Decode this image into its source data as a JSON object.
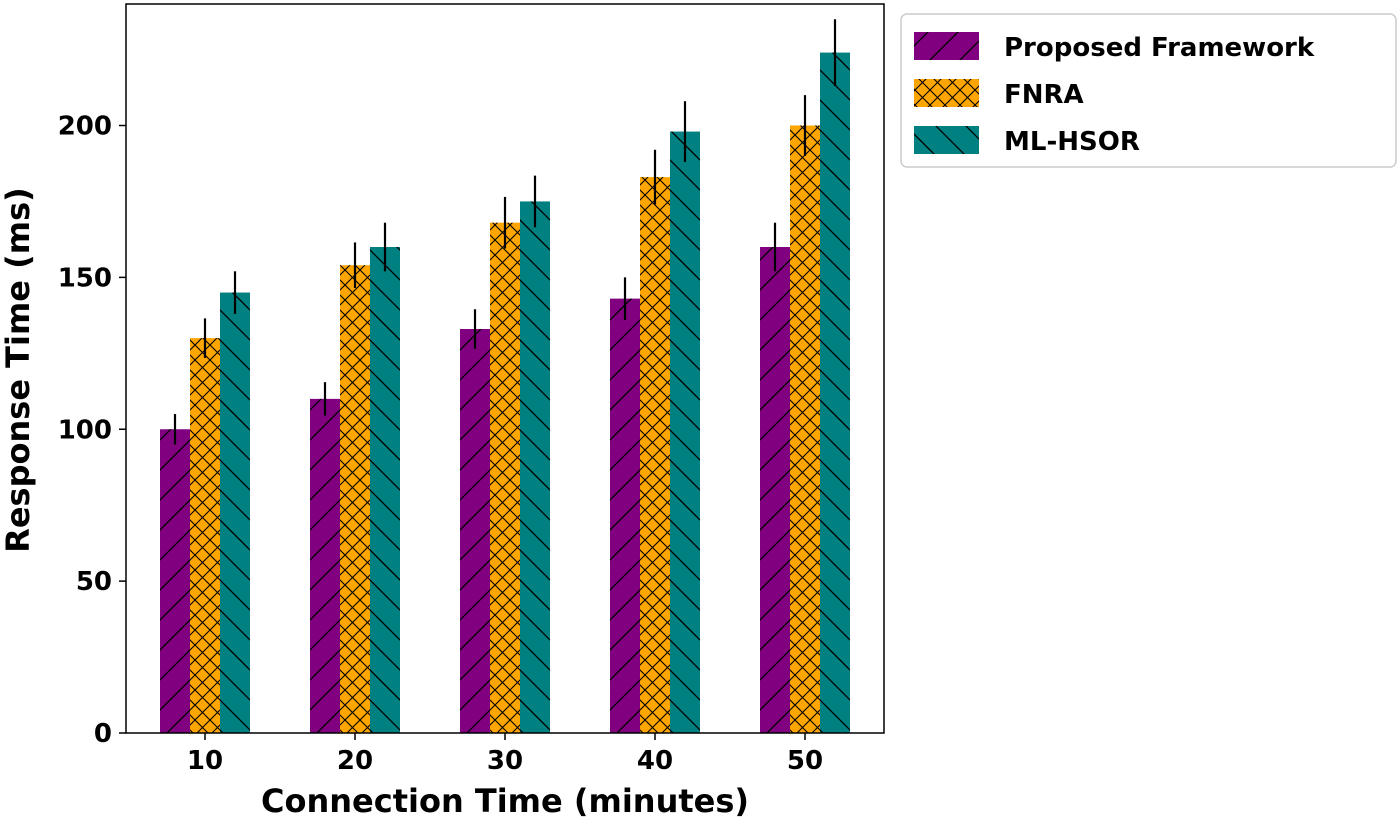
{
  "chart_data": {
    "type": "bar",
    "title": "",
    "xlabel": "Connection Time (minutes)",
    "ylabel": "Response Time (ms)",
    "categories": [
      "10",
      "20",
      "30",
      "40",
      "50"
    ],
    "ylim": [
      0,
      240
    ],
    "yticks": [
      0,
      50,
      100,
      150,
      200
    ],
    "grid": false,
    "legend_position": "outside-top-right",
    "series": [
      {
        "name": "Proposed Framework",
        "color": "#800080",
        "hatch": "forward-diagonal",
        "values": [
          100,
          110,
          133,
          143,
          160
        ],
        "errors": [
          5,
          5.5,
          6.5,
          7,
          8
        ]
      },
      {
        "name": "FNRA",
        "color": "#FFA500",
        "hatch": "crosshatch",
        "values": [
          130,
          154,
          168,
          183,
          200
        ],
        "errors": [
          6.5,
          7.5,
          8.5,
          9,
          10
        ]
      },
      {
        "name": "ML-HSOR",
        "color": "#008080",
        "hatch": "back-diagonal",
        "values": [
          145,
          160,
          175,
          198,
          224
        ],
        "errors": [
          7,
          8,
          8.5,
          10,
          11
        ]
      }
    ]
  }
}
